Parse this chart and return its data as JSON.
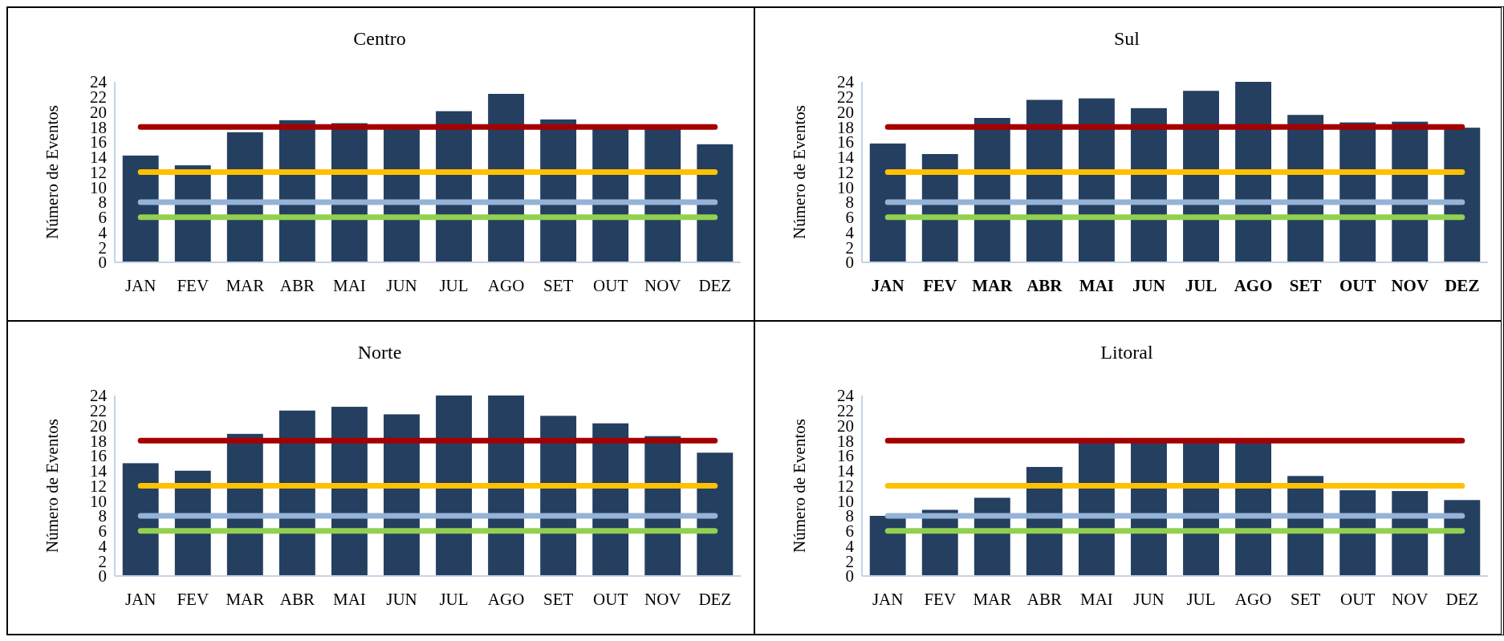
{
  "chart_data": [
    {
      "type": "bar",
      "title": "Centro",
      "ylabel": "Número de Eventos",
      "categories": [
        "JAN",
        "FEV",
        "MAR",
        "ABR",
        "MAI",
        "JUN",
        "JUL",
        "AGO",
        "SET",
        "OUT",
        "NOV",
        "DEZ"
      ],
      "ylim": [
        0,
        24
      ],
      "yticks": [
        0,
        2,
        4,
        6,
        8,
        10,
        12,
        14,
        16,
        18,
        20,
        22,
        24
      ],
      "series": [
        {
          "color": "#243f60",
          "values": [
            14.2,
            12.9,
            17.3,
            18.9,
            18.5,
            17.9,
            20.1,
            22.4,
            19.0,
            17.9,
            17.9,
            15.7
          ]
        },
        {
          "type": "line",
          "color": "#a50000",
          "values": [
            18,
            18,
            18,
            18,
            18,
            18,
            18,
            18,
            18,
            18,
            18,
            18
          ]
        },
        {
          "type": "line",
          "color": "#ffc000",
          "values": [
            12,
            12,
            12,
            12,
            12,
            12,
            12,
            12,
            12,
            12,
            12,
            12
          ]
        },
        {
          "type": "line",
          "color": "#95b3d7",
          "values": [
            8,
            8,
            8,
            8,
            8,
            8,
            8,
            8,
            8,
            8,
            8,
            8
          ]
        },
        {
          "type": "line",
          "color": "#92d050",
          "values": [
            6,
            6,
            6,
            6,
            6,
            6,
            6,
            6,
            6,
            6,
            6,
            6
          ]
        }
      ]
    },
    {
      "type": "bar",
      "title": "Sul",
      "ylabel": "Número de Eventos",
      "categories": [
        "JAN",
        "FEV",
        "MAR",
        "ABR",
        "MAI",
        "JUN",
        "JUL",
        "AGO",
        "SET",
        "OUT",
        "NOV",
        "DEZ"
      ],
      "ylim": [
        0,
        24
      ],
      "yticks": [
        0,
        2,
        4,
        6,
        8,
        10,
        12,
        14,
        16,
        18,
        20,
        22,
        24
      ],
      "series": [
        {
          "color": "#243f60",
          "values": [
            15.8,
            14.4,
            19.2,
            21.6,
            21.8,
            20.5,
            22.8,
            24,
            19.6,
            18.6,
            18.7,
            17.9
          ]
        },
        {
          "type": "line",
          "color": "#a50000",
          "values": [
            18,
            18,
            18,
            18,
            18,
            18,
            18,
            18,
            18,
            18,
            18,
            18
          ]
        },
        {
          "type": "line",
          "color": "#ffc000",
          "values": [
            12,
            12,
            12,
            12,
            12,
            12,
            12,
            12,
            12,
            12,
            12,
            12
          ]
        },
        {
          "type": "line",
          "color": "#95b3d7",
          "values": [
            8,
            8,
            8,
            8,
            8,
            8,
            8,
            8,
            8,
            8,
            8,
            8
          ]
        },
        {
          "type": "line",
          "color": "#92d050",
          "values": [
            6,
            6,
            6,
            6,
            6,
            6,
            6,
            6,
            6,
            6,
            6,
            6
          ]
        }
      ]
    },
    {
      "type": "bar",
      "title": "Norte",
      "ylabel": "Número de Eventos",
      "categories": [
        "JAN",
        "FEV",
        "MAR",
        "ABR",
        "MAI",
        "JUN",
        "JUL",
        "AGO",
        "SET",
        "OUT",
        "NOV",
        "DEZ"
      ],
      "ylim": [
        0,
        24
      ],
      "yticks": [
        0,
        2,
        4,
        6,
        8,
        10,
        12,
        14,
        16,
        18,
        20,
        22,
        24
      ],
      "series": [
        {
          "color": "#243f60",
          "values": [
            15.0,
            14.0,
            18.9,
            22.0,
            22.5,
            21.5,
            24,
            24,
            21.3,
            20.3,
            18.6,
            16.4
          ]
        },
        {
          "type": "line",
          "color": "#a50000",
          "values": [
            18,
            18,
            18,
            18,
            18,
            18,
            18,
            18,
            18,
            18,
            18,
            18
          ]
        },
        {
          "type": "line",
          "color": "#ffc000",
          "values": [
            12,
            12,
            12,
            12,
            12,
            12,
            12,
            12,
            12,
            12,
            12,
            12
          ]
        },
        {
          "type": "line",
          "color": "#95b3d7",
          "values": [
            8,
            8,
            8,
            8,
            8,
            8,
            8,
            8,
            8,
            8,
            8,
            8
          ]
        },
        {
          "type": "line",
          "color": "#92d050",
          "values": [
            6,
            6,
            6,
            6,
            6,
            6,
            6,
            6,
            6,
            6,
            6,
            6
          ]
        }
      ]
    },
    {
      "type": "bar",
      "title": "Litoral",
      "ylabel": "Número de Eventos",
      "categories": [
        "JAN",
        "FEV",
        "MAR",
        "ABR",
        "MAI",
        "JUN",
        "JUL",
        "AGO",
        "SET",
        "OUT",
        "NOV",
        "DEZ"
      ],
      "ylim": [
        0,
        24
      ],
      "yticks": [
        0,
        2,
        4,
        6,
        8,
        10,
        12,
        14,
        16,
        18,
        20,
        22,
        24
      ],
      "series": [
        {
          "color": "#243f60",
          "values": [
            8.0,
            8.8,
            10.4,
            14.5,
            17.8,
            17.8,
            17.8,
            17.8,
            13.3,
            11.4,
            11.3,
            10.1
          ]
        },
        {
          "type": "line",
          "color": "#a50000",
          "values": [
            18,
            18,
            18,
            18,
            18,
            18,
            18,
            18,
            18,
            18,
            18,
            18
          ]
        },
        {
          "type": "line",
          "color": "#ffc000",
          "values": [
            12,
            12,
            12,
            12,
            12,
            12,
            12,
            12,
            12,
            12,
            12,
            12
          ]
        },
        {
          "type": "line",
          "color": "#95b3d7",
          "values": [
            8,
            8,
            8,
            8,
            8,
            8,
            8,
            8,
            8,
            8,
            8,
            8
          ]
        },
        {
          "type": "line",
          "color": "#92d050",
          "values": [
            6,
            6,
            6,
            6,
            6,
            6,
            6,
            6,
            6,
            6,
            6,
            6
          ]
        }
      ]
    }
  ]
}
